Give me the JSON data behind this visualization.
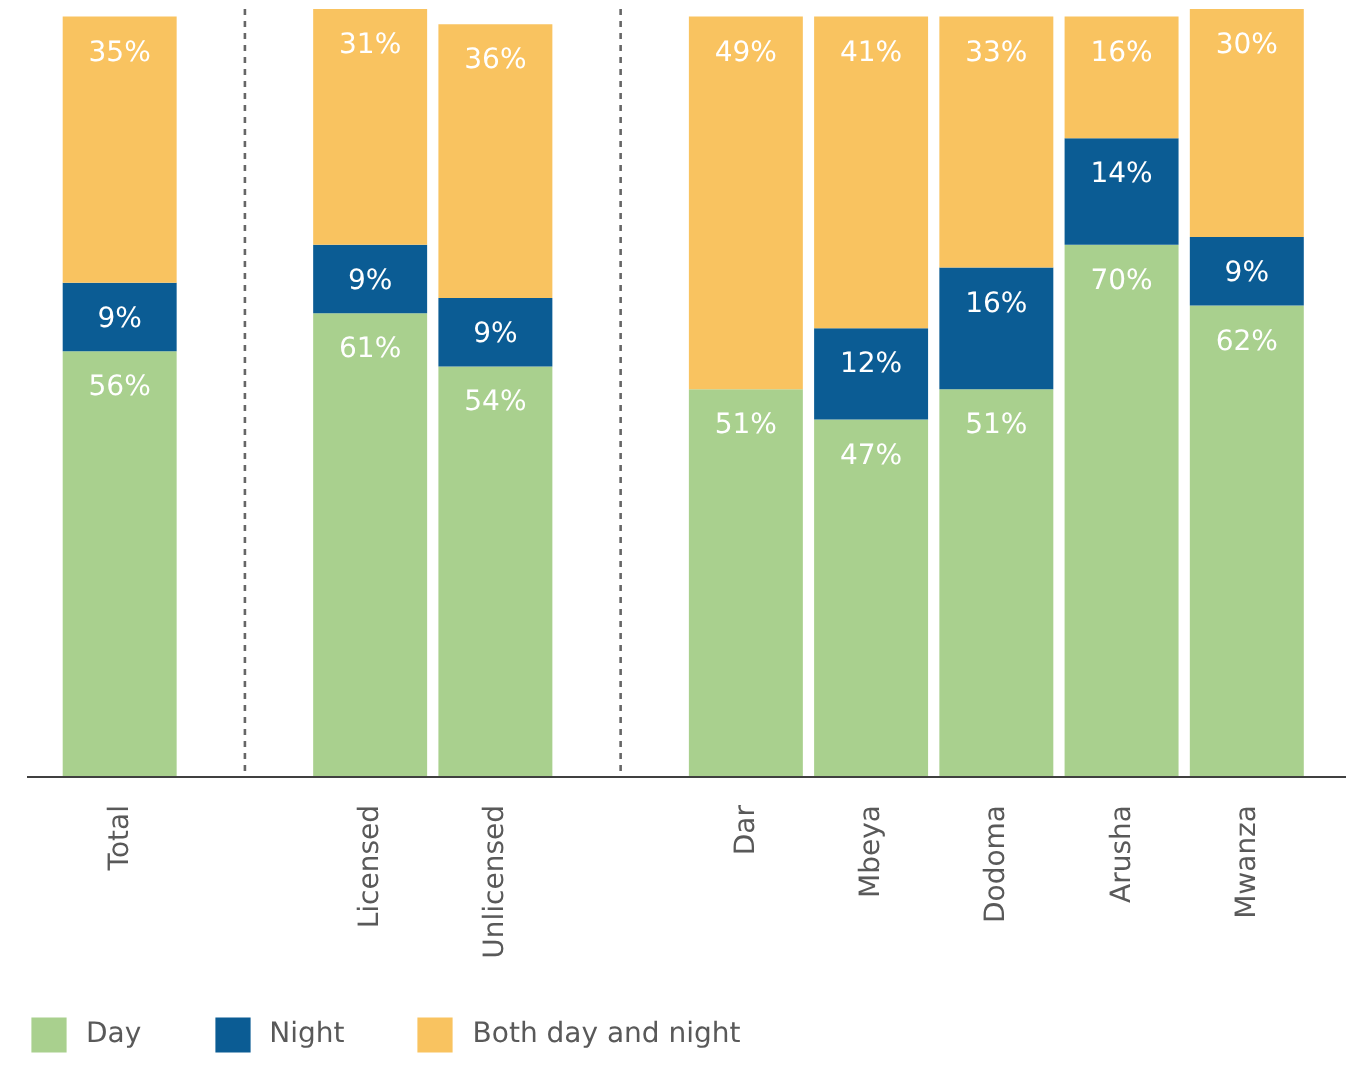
{
  "chart_data": {
    "type": "bar",
    "stacked": true,
    "categories": [
      "Total",
      null,
      "Licensed",
      "Unlicensed",
      null,
      "Dar",
      "Mbeya",
      "Dodoma",
      "Arusha",
      "Mwanza"
    ],
    "series": [
      {
        "name": "Day",
        "color": "#a9d08e",
        "values": [
          56,
          null,
          61,
          54,
          null,
          51,
          47,
          51,
          70,
          62
        ],
        "value_labels": [
          "56%",
          null,
          "61%",
          "54%",
          null,
          "51%",
          "47%",
          "51%",
          "70%",
          "62%"
        ]
      },
      {
        "name": "Night",
        "color": "#0b5c94",
        "values": [
          9,
          null,
          9,
          9,
          null,
          null,
          12,
          16,
          14,
          9
        ],
        "value_labels": [
          "9%",
          null,
          "9%",
          "9%",
          null,
          null,
          "12%",
          "16%",
          "14%",
          "9%"
        ]
      },
      {
        "name": "Both day and night",
        "color": "#f9c360",
        "values": [
          35,
          null,
          31,
          36,
          null,
          49,
          41,
          33,
          16,
          30
        ],
        "value_labels": [
          "35%",
          null,
          "31%",
          "36%",
          null,
          "49%",
          "41%",
          "33%",
          "16%",
          "30%"
        ]
      }
    ],
    "ylim": [
      0,
      101
    ],
    "tick_labels": "x",
    "legend": "bottom"
  }
}
